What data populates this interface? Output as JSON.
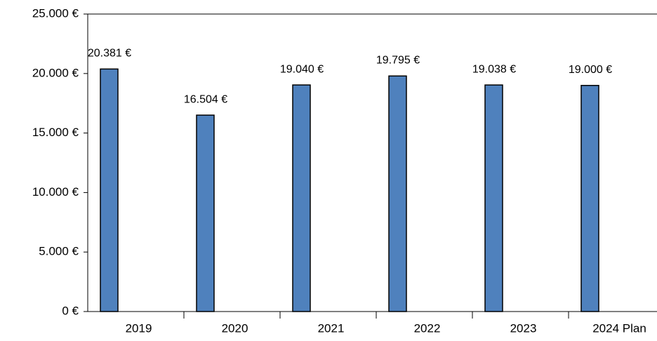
{
  "chart_data": {
    "type": "bar",
    "categories": [
      "2019",
      "2020",
      "2021",
      "2022",
      "2023",
      "2024 Plan"
    ],
    "values": [
      20381,
      16504,
      19040,
      19795,
      19038,
      19000
    ],
    "value_labels": [
      "20.381 €",
      "16.504 €",
      "19.040 €",
      "19.795 €",
      "19.038 €",
      "19.000 €"
    ],
    "color": "#4f81bd",
    "ylim": [
      0,
      25000
    ],
    "yticks": [
      {
        "value": 0,
        "label": "0 €"
      },
      {
        "value": 5000,
        "label": "5.000 €"
      },
      {
        "value": 10000,
        "label": "10.000 €"
      },
      {
        "value": 15000,
        "label": "15.000 €"
      },
      {
        "value": 20000,
        "label": "20.000 €"
      },
      {
        "value": 25000,
        "label": "25.000 €"
      }
    ],
    "grid": false
  }
}
